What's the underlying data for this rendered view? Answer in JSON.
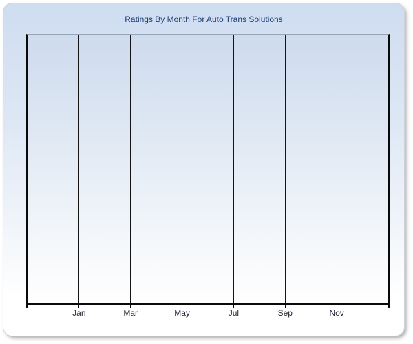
{
  "card": {
    "title": "Ratings By Month For Auto Trans Solutions",
    "colors": {
      "title_text": "#223f74",
      "card_bg_top": "#cfddf1",
      "card_bg_bottom": "#ffffff",
      "plot_bg_top": "#cedbee",
      "plot_bg_bottom": "#fefefe",
      "plot_border": "#0a0a0a",
      "plot_top_border": "#98a4b8",
      "gridline": "#141414",
      "axis_label_text": "#232936"
    }
  },
  "chart_data": {
    "type": "line",
    "title": "Ratings By Month For Auto Trans Solutions",
    "categories": [
      "Jan",
      "Mar",
      "May",
      "Jul",
      "Sep",
      "Nov"
    ],
    "series": [],
    "plot_empty": true,
    "xlabel": "",
    "ylabel": "",
    "x_axis": {
      "columns": 7,
      "labeled_tick_count": 6,
      "edge_ticks": true
    },
    "y_axis": {
      "tick_labels": []
    },
    "grid": {
      "vertical": true,
      "horizontal": false
    },
    "legend": "none"
  }
}
